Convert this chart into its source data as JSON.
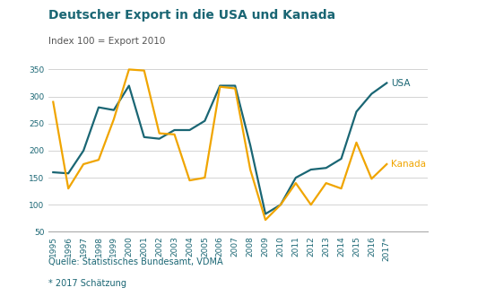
{
  "title": "Deutscher Export in die USA und Kanada",
  "subtitle": "Index 100 = Export 2010",
  "footer1": "Quelle: Statistisches Bundesamt, VDMA",
  "footer2": "* 2017 Schätzung",
  "years": [
    "1995",
    "1996",
    "1997",
    "1998",
    "1999",
    "2000",
    "2001",
    "2002",
    "2003",
    "2004",
    "2005",
    "2006",
    "2007",
    "2008",
    "2009",
    "2010",
    "2011",
    "2012",
    "2013",
    "2014",
    "2015",
    "2016",
    "2017*"
  ],
  "usa": [
    160,
    158,
    200,
    280,
    275,
    320,
    225,
    222,
    238,
    238,
    255,
    320,
    320,
    210,
    83,
    100,
    150,
    165,
    168,
    185,
    272,
    305,
    325
  ],
  "kanada": [
    290,
    130,
    175,
    183,
    258,
    350,
    348,
    232,
    230,
    145,
    150,
    318,
    315,
    165,
    72,
    100,
    140,
    100,
    140,
    130,
    215,
    148,
    175
  ],
  "usa_color": "#1a6674",
  "kanada_color": "#f0a500",
  "title_color": "#1a6674",
  "subtitle_color": "#555555",
  "footer_color": "#1a6674",
  "ylim": [
    50,
    360
  ],
  "yticks": [
    50,
    100,
    150,
    200,
    250,
    300,
    350
  ],
  "background_color": "#ffffff",
  "grid_color": "#cccccc",
  "title_fontsize": 10,
  "subtitle_fontsize": 7.5,
  "tick_fontsize": 6.5,
  "label_fontsize": 7.5,
  "footer_fontsize": 7,
  "line_width": 1.6,
  "bottom_bar_color": "#f0a500",
  "left_bar_color": "#1a6674"
}
